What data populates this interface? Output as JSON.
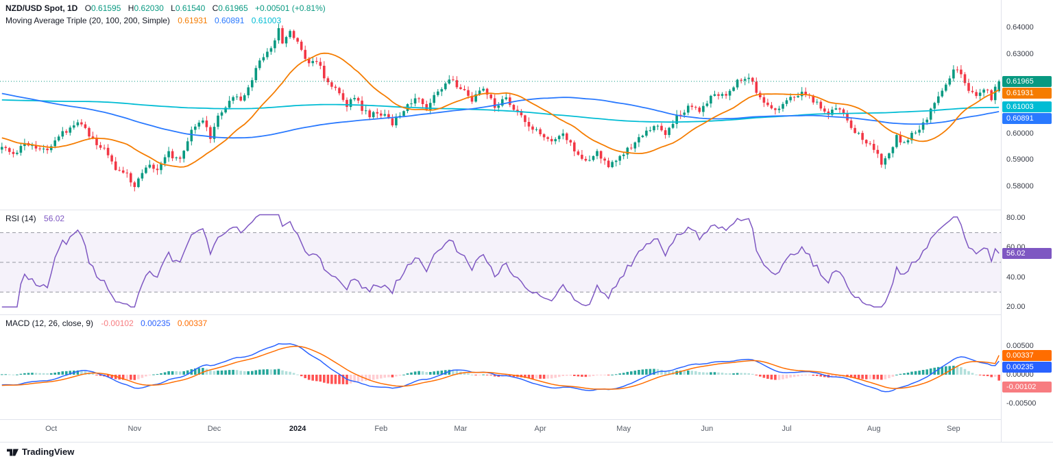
{
  "window": {
    "title": "NZD/USD Spot Chart"
  },
  "colors": {
    "up": "#089981",
    "down": "#f23645",
    "ma20": "#f57c00",
    "ma100": "#2979ff",
    "ma200": "#00bcd4",
    "last_price_line": "#089981",
    "rsi": "#7e57c2",
    "rsi_band_fill": "rgba(126,87,194,0.08)",
    "level_dash": "#9598a1",
    "macd": "#2962ff",
    "signal": "#ff6d00",
    "hist_pos_rising": "#26a69a",
    "hist_pos_falling": "#b2dfdb",
    "hist_neg_falling": "#ff5252",
    "hist_neg_rising": "#ffcdd2"
  },
  "legend": {
    "symbol": "NZD/USD Spot, 1D",
    "o_label": "O",
    "o": "0.61595",
    "h_label": "H",
    "h": "0.62030",
    "l_label": "L",
    "l": "0.61540",
    "c_label": "C",
    "c": "0.61965",
    "change": "+0.00501 (+0.81%)",
    "ma_name": "Moving Average Triple (20, 100, 200, Simple)",
    "ma20": "0.61931",
    "ma100": "0.60891",
    "ma200": "0.61003"
  },
  "rsi_legend": {
    "name": "RSI (14)",
    "value": "56.02"
  },
  "macd_legend": {
    "name": "MACD (12, 26, close, 9)",
    "hist": "-0.00102",
    "macd": "0.00235",
    "signal": "0.00337"
  },
  "price_axis": {
    "labels": [
      {
        "text": "0.64000",
        "value": 0.64
      },
      {
        "text": "0.63000",
        "value": 0.63
      },
      {
        "text": "0.62000",
        "value": 0.62
      },
      {
        "text": "0.61000",
        "value": 0.61
      },
      {
        "text": "0.60000",
        "value": 0.6
      },
      {
        "text": "0.59000",
        "value": 0.59
      },
      {
        "text": "0.58000",
        "value": 0.58
      }
    ],
    "badges": [
      {
        "text": "0.61965",
        "value": 0.61965,
        "color": "#089981"
      },
      {
        "text": "0.61931",
        "value": 0.61931,
        "color": "#f57c00"
      },
      {
        "text": "0.61003",
        "value": 0.61003,
        "color": "#00bcd4"
      },
      {
        "text": "0.60891",
        "value": 0.60891,
        "color": "#2979ff"
      }
    ]
  },
  "rsi_axis": {
    "labels": [
      {
        "text": "80.00",
        "value": 80
      },
      {
        "text": "60.00",
        "value": 60
      },
      {
        "text": "40.00",
        "value": 40
      },
      {
        "text": "20.00",
        "value": 20
      }
    ],
    "badge": {
      "text": "56.02",
      "value": 56.02,
      "color": "#7e57c2"
    }
  },
  "macd_axis": {
    "labels": [
      {
        "text": "0.00500",
        "value": 0.005
      },
      {
        "text": "0.00000",
        "value": 0
      },
      {
        "text": "-0.00500",
        "value": -0.005
      }
    ],
    "badges": [
      {
        "text": "0.00337",
        "value": 0.00337,
        "color": "#ff6d00"
      },
      {
        "text": "0.00235",
        "value": 0.00235,
        "color": "#2962ff"
      },
      {
        "text": "-0.00102",
        "value": -0.00102,
        "color": "#f77c80"
      }
    ]
  },
  "time_axis": {
    "months": [
      {
        "label": "Oct",
        "day": 13
      },
      {
        "label": "Nov",
        "day": 35
      },
      {
        "label": "Dec",
        "day": 56
      },
      {
        "label": "2024",
        "day": 78,
        "year": true
      },
      {
        "label": "Feb",
        "day": 100
      },
      {
        "label": "Mar",
        "day": 121
      },
      {
        "label": "Apr",
        "day": 142
      },
      {
        "label": "May",
        "day": 164
      },
      {
        "label": "Jun",
        "day": 186
      },
      {
        "label": "Jul",
        "day": 207
      },
      {
        "label": "Aug",
        "day": 230
      },
      {
        "label": "Sep",
        "day": 251
      }
    ]
  },
  "footer": {
    "brand": "TradingView"
  },
  "chart_data": [
    {
      "type": "candlestick",
      "panel": "price",
      "title": "NZD/USD Spot, 1D",
      "symbol": "NZD/USD",
      "timeframe": "1D",
      "last_candle": {
        "open": 0.61595,
        "high": 0.6203,
        "low": 0.6154,
        "close": 0.61965,
        "change": "+0.00501",
        "change_pct": "+0.81%"
      },
      "moving_averages": [
        {
          "period": 20,
          "type": "Simple",
          "last": 0.61931
        },
        {
          "period": 100,
          "type": "Simple",
          "last": 0.60891
        },
        {
          "period": 200,
          "type": "Simple",
          "last": 0.61003
        }
      ],
      "ylim": [
        0.5712,
        0.6504
      ],
      "y_ticks": [
        0.64,
        0.63,
        0.62,
        0.61,
        0.6,
        0.59,
        0.58
      ],
      "days_visible": 264,
      "close_anchors": [
        [
          0,
          0.595
        ],
        [
          3,
          0.5915
        ],
        [
          6,
          0.5965
        ],
        [
          10,
          0.5935
        ],
        [
          13,
          0.5945
        ],
        [
          16,
          0.6
        ],
        [
          19,
          0.603
        ],
        [
          21,
          0.6045
        ],
        [
          24,
          0.5975
        ],
        [
          27,
          0.5935
        ],
        [
          30,
          0.587
        ],
        [
          33,
          0.584
        ],
        [
          35,
          0.5805
        ],
        [
          37,
          0.584
        ],
        [
          39,
          0.589
        ],
        [
          41,
          0.5855
        ],
        [
          44,
          0.5925
        ],
        [
          47,
          0.5895
        ],
        [
          50,
          0.6005
        ],
        [
          53,
          0.605
        ],
        [
          55,
          0.5985
        ],
        [
          57,
          0.6065
        ],
        [
          59,
          0.6105
        ],
        [
          61,
          0.6145
        ],
        [
          63,
          0.612
        ],
        [
          65,
          0.618
        ],
        [
          67,
          0.624
        ],
        [
          69,
          0.629
        ],
        [
          71,
          0.633
        ],
        [
          73,
          0.639
        ],
        [
          74,
          0.6345
        ],
        [
          76,
          0.6385
        ],
        [
          79,
          0.632
        ],
        [
          81,
          0.6255
        ],
        [
          83,
          0.628
        ],
        [
          85,
          0.6215
        ],
        [
          87,
          0.618
        ],
        [
          89,
          0.6145
        ],
        [
          91,
          0.611
        ],
        [
          93,
          0.6135
        ],
        [
          95,
          0.6095
        ],
        [
          97,
          0.607
        ],
        [
          99,
          0.608
        ],
        [
          101,
          0.6065
        ],
        [
          103,
          0.604
        ],
        [
          106,
          0.609
        ],
        [
          109,
          0.6135
        ],
        [
          112,
          0.609
        ],
        [
          115,
          0.6165
        ],
        [
          118,
          0.62
        ],
        [
          121,
          0.617
        ],
        [
          124,
          0.6125
        ],
        [
          127,
          0.6165
        ],
        [
          130,
          0.61
        ],
        [
          133,
          0.6135
        ],
        [
          136,
          0.608
        ],
        [
          139,
          0.602
        ],
        [
          142,
          0.6005
        ],
        [
          145,
          0.597
        ],
        [
          148,
          0.601
        ],
        [
          151,
          0.5935
        ],
        [
          154,
          0.589
        ],
        [
          157,
          0.5925
        ],
        [
          160,
          0.588
        ],
        [
          163,
          0.5915
        ],
        [
          166,
          0.5945
        ],
        [
          169,
          0.599
        ],
        [
          172,
          0.603
        ],
        [
          175,
          0.6
        ],
        [
          178,
          0.606
        ],
        [
          181,
          0.61
        ],
        [
          184,
          0.608
        ],
        [
          186,
          0.612
        ],
        [
          188,
          0.615
        ],
        [
          191,
          0.6135
        ],
        [
          194,
          0.62
        ],
        [
          197,
          0.622
        ],
        [
          200,
          0.613
        ],
        [
          203,
          0.609
        ],
        [
          206,
          0.611
        ],
        [
          209,
          0.614
        ],
        [
          212,
          0.615
        ],
        [
          215,
          0.611
        ],
        [
          218,
          0.6075
        ],
        [
          221,
          0.6095
        ],
        [
          224,
          0.603
        ],
        [
          227,
          0.5975
        ],
        [
          230,
          0.594
        ],
        [
          232,
          0.589
        ],
        [
          234,
          0.5925
        ],
        [
          236,
          0.5985
        ],
        [
          238,
          0.5955
        ],
        [
          240,
          0.6
        ],
        [
          243,
          0.6035
        ],
        [
          246,
          0.611
        ],
        [
          249,
          0.619
        ],
        [
          251,
          0.6245
        ],
        [
          253,
          0.6225
        ],
        [
          255,
          0.617
        ],
        [
          257,
          0.614
        ],
        [
          259,
          0.6175
        ],
        [
          261,
          0.6135
        ],
        [
          263,
          0.61965
        ]
      ],
      "history_anchors": [
        [
          -200,
          0.6
        ],
        [
          -160,
          0.608
        ],
        [
          -120,
          0.616
        ],
        [
          -90,
          0.623
        ],
        [
          -60,
          0.627
        ],
        [
          -30,
          0.608
        ],
        [
          -10,
          0.598
        ],
        [
          -1,
          0.5952
        ]
      ]
    },
    {
      "type": "line",
      "panel": "rsi",
      "title": "RSI (14)",
      "period": 14,
      "last": 56.02,
      "levels": [
        70,
        50,
        30
      ],
      "ylim": [
        15,
        85
      ],
      "y_ticks": [
        80,
        60,
        40,
        20
      ]
    },
    {
      "type": "histogram",
      "panel": "macd",
      "title": "MACD (12, 26, close, 9)",
      "params": [
        12,
        26,
        "close",
        9
      ],
      "last": {
        "histogram": -0.00102,
        "macd": 0.00235,
        "signal": 0.00337
      },
      "ylim": [
        -0.00774,
        0.01036
      ],
      "y_ticks": [
        0.005,
        0,
        -0.005
      ]
    }
  ]
}
